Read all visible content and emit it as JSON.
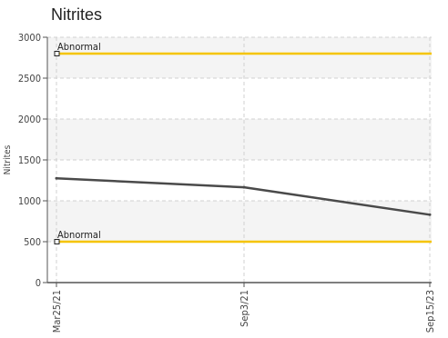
{
  "chart_data": {
    "type": "line",
    "title": "Nitrites",
    "xlabel": "",
    "ylabel": "Nitrites",
    "ylim": [
      0,
      3000
    ],
    "yticks": [
      0,
      500,
      1000,
      1500,
      2000,
      2500,
      3000
    ],
    "x": [
      "Mar25/21",
      "Sep3/21",
      "Sep15/23"
    ],
    "series": [
      {
        "values": [
          1275,
          1165,
          830
        ]
      }
    ],
    "reference_lines": [
      {
        "label": "Abnormal",
        "value": 2800,
        "color": "#f5c400"
      },
      {
        "label": "Abnormal",
        "value": 500,
        "color": "#f5c400"
      }
    ],
    "band_color": "#f4f4f4",
    "line_color": "#4a4a4a",
    "grid": true
  }
}
